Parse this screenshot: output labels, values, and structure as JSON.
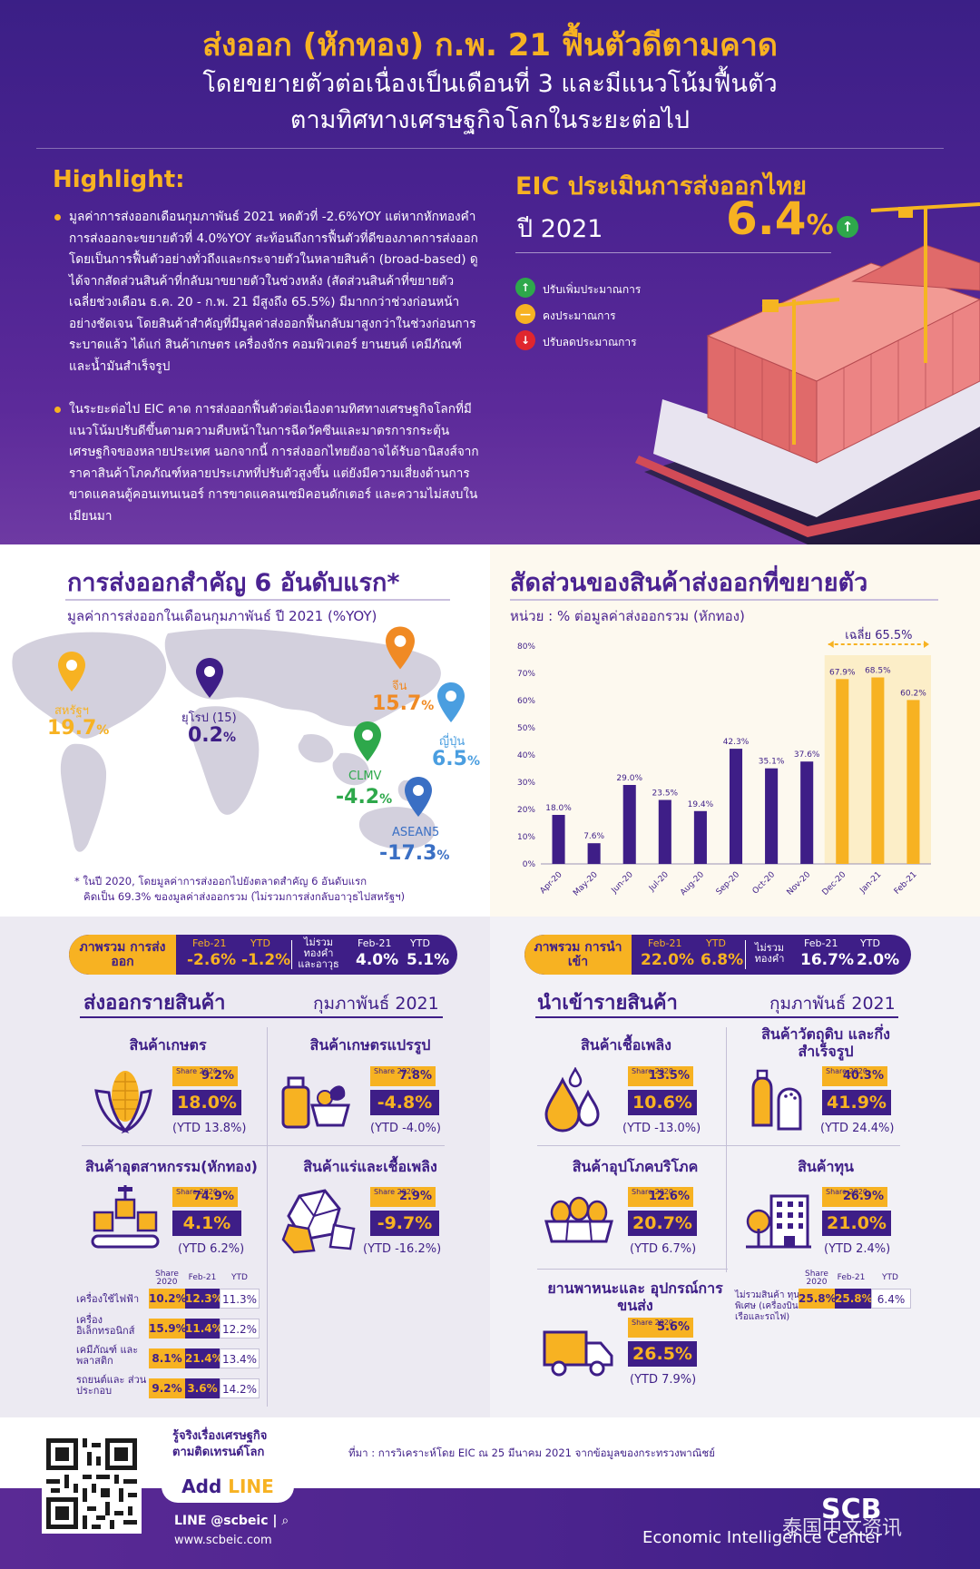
{
  "header": {
    "title": "ส่งออก (หักทอง) ก.พ. 21 ฟื้นตัวดีตามคาด",
    "subtitle_1": "โดยขยายตัวต่อเนื่องเป็นเดือนที่ 3 และมีแนวโน้มฟื้นตัว",
    "subtitle_2": "ตามทิศทางเศรษฐกิจโลกในระยะต่อไป"
  },
  "highlight": {
    "title": "Highlight:",
    "bullets": [
      "มูลค่าการส่งออกเดือนกุมภาพันธ์ 2021 หดตัวที่ -2.6%YOY แต่หากหักทองคำ การส่งออกจะขยายตัวที่ 4.0%YOY สะท้อนถึงการฟื้นตัวที่ดีของภาคการส่งออก โดยเป็นการฟื้นตัวอย่างทั่วถึงและกระจายตัวในหลายสินค้า (broad-based) ดูได้จากสัดส่วนสินค้าที่กลับมาขยายตัวในช่วงหลัง (สัดส่วนสินค้าที่ขยายตัวเฉลี่ยช่วงเดือน ธ.ค. 20 - ก.พ. 21 มีสูงถึง 65.5%) มีมากกว่าช่วงก่อนหน้าอย่างชัดเจน โดยสินค้าสำคัญที่มีมูลค่าส่งออกฟื้นกลับมาสูงกว่าในช่วงก่อนการระบาดแล้ว ได้แก่ สินค้าเกษตร เครื่องจักร คอมพิวเตอร์ ยานยนต์ เคมีภัณฑ์ และน้ำมันสำเร็จรูป",
      "ในระยะต่อไป EIC คาด การส่งออกฟื้นตัวต่อเนื่องตามทิศทางเศรษฐกิจโลกที่มีแนวโน้มปรับดีขึ้นตามความคืบหน้าในการฉีดวัคซีนและมาตรการกระตุ้นเศรษฐกิจของหลายประเทศ นอกจากนี้ การส่งออกไทยยังอาจได้รับอานิสงส์จากราคาสินค้าโภคภัณฑ์หลายประเภทที่ปรับตัวสูงขึ้น แต่ยังมีความเสี่ยงด้านการขาดแคลนตู้คอนเทนเนอร์ การขาดแคลนเซมิคอนดักเตอร์ และความไม่สงบในเมียนมา"
    ]
  },
  "eic_forecast": {
    "title": "EIC ประเมินการส่งออกไทย",
    "year_label": "ปี 2021",
    "value": "6.4",
    "unit": "%",
    "up_glyph": "↑",
    "legend": [
      {
        "glyph": "↑",
        "label": "ปรับเพิ่มประมาณการ",
        "color": "#2ea84b"
      },
      {
        "glyph": "—",
        "label": "คงประมาณการ",
        "color": "#f7b222"
      },
      {
        "glyph": "↓",
        "label": "ปรับลดประมาณการ",
        "color": "#e0262e"
      }
    ]
  },
  "top6": {
    "title": "การส่งออกสำคัญ 6 อันดับแรก*",
    "subtitle": "มูลค่าการส่งออกในเดือนกุมภาพันธ์ ปี 2021 (%YOY)",
    "markets": [
      {
        "name": "สหรัฐฯ",
        "value": "19.7",
        "unit": "%",
        "color": "#f7b222"
      },
      {
        "name": "ยุโรป (15)",
        "value": "0.2",
        "unit": "%",
        "color": "#3e1e87"
      },
      {
        "name": "จีน",
        "value": "15.7",
        "unit": "%",
        "color": "#f08a24"
      },
      {
        "name": "ญี่ปุ่น",
        "value": "6.5",
        "unit": "%",
        "color": "#4a9ee0"
      },
      {
        "name": "CLMV",
        "value": "-4.2",
        "unit": "%",
        "color": "#2ea84b"
      },
      {
        "name": "ASEAN5",
        "value": "-17.3",
        "unit": "%",
        "color": "#3a6fc4"
      }
    ],
    "note_1": "* ในปี 2020, โดยมูลค่าการส่งออกไปยังตลาดสำคัญ 6 อันดับแรก",
    "note_2": "คิดเป็น 69.3% ของมูลค่าส่งออกรวม (ไม่รวมการส่งกลับอาวุธไปสหรัฐฯ)"
  },
  "share_chart": {
    "title": "สัดส่วนของสินค้าส่งออกที่ขยายตัว",
    "unit_label": "หน่วย : % ต่อมูลค่าส่งออกรวม (หักทอง)",
    "average_label": "เฉลี่ย 65.5%"
  },
  "chart_data": {
    "type": "bar",
    "title": "สัดส่วนของสินค้าส่งออกที่ขยายตัว",
    "ylabel": "หน่วย : % ต่อมูลค่าส่งออกรวม (หักทอง)",
    "categories": [
      "Apr-20",
      "May-20",
      "Jun-20",
      "Jul-20",
      "Aug-20",
      "Sep-20",
      "Oct-20",
      "Nov-20",
      "Dec-20",
      "Jan-21",
      "Feb-21"
    ],
    "values": [
      18.0,
      7.6,
      29.0,
      23.5,
      19.4,
      42.3,
      35.1,
      37.6,
      67.9,
      68.5,
      60.2
    ],
    "data_labels": [
      "18.0%",
      "7.6%",
      "29.0%",
      "23.5%",
      "19.4%",
      "42.3%",
      "35.1%",
      "37.6%",
      "67.9%",
      "68.5%",
      "60.2%"
    ],
    "y_ticks": [
      "0%",
      "10%",
      "20%",
      "30%",
      "40%",
      "50%",
      "60%",
      "70%",
      "80%"
    ],
    "ylim": [
      0,
      80
    ],
    "highlight_from_index": 8,
    "colors": {
      "normal": "#3e1e87",
      "highlight": "#f7b222"
    },
    "grid": false
  },
  "export_summary": {
    "label": "ภาพรวม การส่งออก",
    "h1": "Feb-21",
    "v1": "-2.6%",
    "h2": "YTD",
    "v2": "-1.2%",
    "excl_label": "ไม่รวม ทองคำ และอาวุธ",
    "h3": "Feb-21",
    "v3": "4.0%",
    "h4": "YTD",
    "v4": "5.1%"
  },
  "import_summary": {
    "label": "ภาพรวม การนำเข้า",
    "h1": "Feb-21",
    "v1": "22.0%",
    "h2": "YTD",
    "v2": "6.8%",
    "excl_label": "ไม่รวม ทองคำ",
    "h3": "Feb-21",
    "v3": "16.7%",
    "h4": "YTD",
    "v4": "2.0%"
  },
  "export_products": {
    "title": "ส่งออกรายสินค้า",
    "month": "กุมภาพันธ์ 2021",
    "items": [
      {
        "name": "สินค้าเกษตร",
        "share": "9.2%",
        "value": "18.0%",
        "ytd": "(YTD 13.8%)"
      },
      {
        "name": "สินค้าเกษตรแปรรูป",
        "share": "7.8%",
        "value": "-4.8%",
        "ytd": "(YTD -4.0%)"
      },
      {
        "name": "สินค้าอุตสาหกรรม(หักทอง)",
        "share": "74.9%",
        "value": "4.1%",
        "ytd": "(YTD 6.2%)"
      },
      {
        "name": "สินค้าแร่และเชื้อเพลิง",
        "share": "2.9%",
        "value": "-9.7%",
        "ytd": "(YTD -16.2%)"
      }
    ],
    "share_label": "Share 2020",
    "sub_header": {
      "share": "Share 2020",
      "feb": "Feb-21",
      "ytd": "YTD"
    },
    "sub_rows": [
      {
        "label": "เครื่องใช้ไฟฟ้า",
        "share": "10.2%",
        "feb": "12.3%",
        "ytd": "11.3%"
      },
      {
        "label": "เครื่อง อิเล็กทรอนิกส์",
        "share": "15.9%",
        "feb": "11.4%",
        "ytd": "12.2%"
      },
      {
        "label": "เคมีภัณฑ์ และพลาสติก",
        "share": "8.1%",
        "feb": "21.4%",
        "ytd": "13.4%"
      },
      {
        "label": "รถยนต์และ ส่วนประกอบ",
        "share": "9.2%",
        "feb": "3.6%",
        "ytd": "14.2%"
      }
    ]
  },
  "import_products": {
    "title": "นำเข้ารายสินค้า",
    "month": "กุมภาพันธ์ 2021",
    "items": [
      {
        "name": "สินค้าเชื้อเพลิง",
        "share": "13.5%",
        "value": "10.6%",
        "ytd": "(YTD -13.0%)"
      },
      {
        "name": "สินค้าวัตถุดิบ และกึ่งสำเร็จรูป",
        "share": "40.3%",
        "value": "41.9%",
        "ytd": "(YTD 24.4%)"
      },
      {
        "name": "สินค้าอุปโภคบริโภค",
        "share": "12.6%",
        "value": "20.7%",
        "ytd": "(YTD 6.7%)"
      },
      {
        "name": "สินค้าทุน",
        "share": "26.9%",
        "value": "21.0%",
        "ytd": "(YTD 2.4%)"
      },
      {
        "name": "ยานพาหนะและ อุปกรณ์การขนส่ง",
        "share": "5.6%",
        "value": "26.5%",
        "ytd": "(YTD 7.9%)"
      }
    ],
    "share_label": "Share 2020",
    "sub_header": {
      "share": "Share 2020",
      "feb": "Feb-21",
      "ytd": "YTD"
    },
    "sub_row": {
      "label": "ไม่รวมสินค้า ทุนพิเศษ (เครื่องบิน เรือและรถไฟ)",
      "share": "25.8%",
      "feb": "25.8%",
      "ytd": "6.4%"
    }
  },
  "footer": {
    "tagline_1": "รู้จริงเรื่องเศรษฐกิจ",
    "tagline_2": "ตามติดเทรนด์โลก",
    "add_line_1": "Add",
    "add_line_2": "LINE",
    "line_id": "LINE @scbeic |",
    "website": "www.scbeic.com",
    "source": "ที่มา : การวิเคราะห์โดย EIC ณ 25 มีนาคม 2021 จากข้อมูลของกระทรวงพาณิชย์",
    "brand": "SCB",
    "brand_unit": "Economic Intelligence Center",
    "watermark": "泰国中文资讯"
  }
}
